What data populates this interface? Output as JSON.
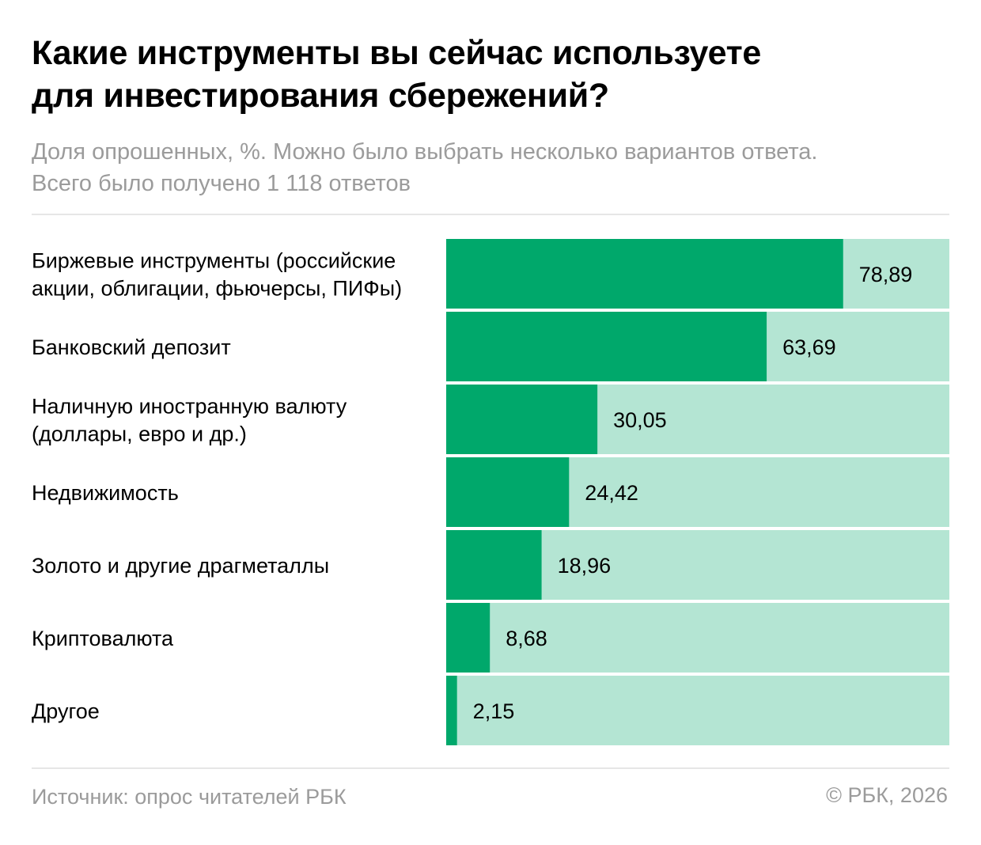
{
  "header": {
    "title_line1": "Какие инструменты вы сейчас используете",
    "title_line2": "для инвестирования сбережений?",
    "subtitle_line1": "Доля опрошенных, %. Можно было выбрать несколько вариантов ответа.",
    "subtitle_line2": "Всего было получено 1 118 ответов"
  },
  "footer": {
    "source": "Источник: опрос читателей РБК",
    "copyright": "© РБК, 2026"
  },
  "colors": {
    "bar": "#00a86b",
    "track": "#b4e5d3",
    "label": "#000000"
  },
  "chart_data": {
    "type": "bar",
    "orientation": "horizontal",
    "categories": [
      [
        "Биржевые инструменты (российские",
        "акции, облигации, фьючерсы, ПИФы)"
      ],
      [
        "Банковский депозит"
      ],
      [
        "Наличную иностранную валюту",
        "(доллары, евро и др.)"
      ],
      [
        "Недвижимость"
      ],
      [
        "Золото и другие драгметаллы"
      ],
      [
        "Криптовалюта"
      ],
      [
        "Другое"
      ]
    ],
    "values": [
      78.89,
      63.69,
      30.05,
      24.42,
      18.96,
      8.68,
      2.15
    ],
    "value_labels": [
      "78,89",
      "63,69",
      "30,05",
      "24,42",
      "18,96",
      "8,68",
      "2,15"
    ],
    "xlim": [
      0,
      100
    ],
    "grid": false,
    "legend": "none"
  }
}
